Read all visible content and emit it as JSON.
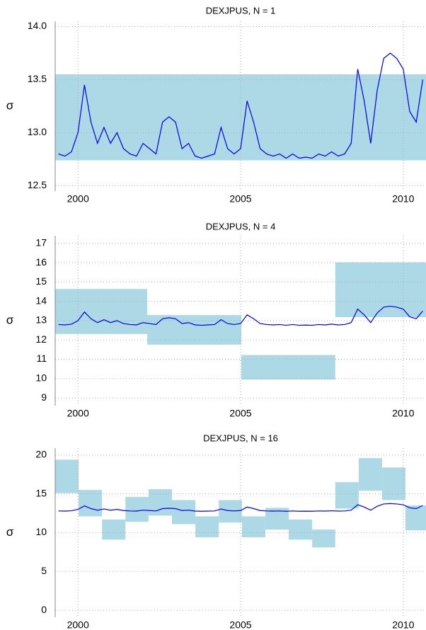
{
  "chart_data": [
    {
      "type": "line",
      "title": "DEXJPUS, N = 1",
      "y_label": "σ",
      "xlim": [
        1999.3,
        2010.7
      ],
      "xticks": [
        2000,
        2005,
        2010
      ],
      "ylim": [
        12.45,
        14.05
      ],
      "yticks": [
        {
          "value": 12.5,
          "label": "12.5"
        },
        {
          "value": 13,
          "label": "13.0"
        },
        {
          "value": 13.5,
          "label": "13.5"
        },
        {
          "value": 14,
          "label": "14.0"
        }
      ],
      "grid": true,
      "line_color": "#0000ee",
      "box_color": "#add8e6",
      "boxes": {
        "edges": [
          1999.3,
          2010.7
        ],
        "low": [
          12.74
        ],
        "high": [
          13.55
        ]
      },
      "x": [
        1999.4,
        1999.6,
        1999.8,
        2000.0,
        2000.2,
        2000.4,
        2000.6,
        2000.8,
        2001.0,
        2001.2,
        2001.4,
        2001.6,
        2001.8,
        2002.0,
        2002.2,
        2002.4,
        2002.6,
        2002.8,
        2003.0,
        2003.2,
        2003.4,
        2003.6,
        2003.8,
        2004.0,
        2004.2,
        2004.4,
        2004.6,
        2004.8,
        2005.0,
        2005.2,
        2005.4,
        2005.6,
        2005.8,
        2006.0,
        2006.2,
        2006.4,
        2006.6,
        2006.8,
        2007.0,
        2007.2,
        2007.4,
        2007.6,
        2007.8,
        2008.0,
        2008.2,
        2008.4,
        2008.6,
        2008.8,
        2009.0,
        2009.2,
        2009.4,
        2009.6,
        2009.8,
        2010.0,
        2010.2,
        2010.4,
        2010.6
      ],
      "values": [
        12.8,
        12.78,
        12.82,
        13.0,
        13.45,
        13.1,
        12.9,
        13.05,
        12.9,
        13.0,
        12.85,
        12.8,
        12.78,
        12.9,
        12.85,
        12.8,
        13.1,
        13.15,
        13.1,
        12.85,
        12.9,
        12.78,
        12.76,
        12.78,
        12.8,
        13.05,
        12.85,
        12.8,
        12.85,
        13.3,
        13.1,
        12.85,
        12.8,
        12.78,
        12.8,
        12.76,
        12.8,
        12.76,
        12.77,
        12.76,
        12.8,
        12.78,
        12.82,
        12.78,
        12.8,
        12.9,
        13.6,
        13.3,
        12.9,
        13.4,
        13.7,
        13.75,
        13.7,
        13.6,
        13.2,
        13.1,
        13.5
      ]
    },
    {
      "type": "line",
      "title": "DEXJPUS, N = 4",
      "y_label": "σ",
      "xlim": [
        1999.3,
        2010.7
      ],
      "xticks": [
        2000,
        2005,
        2010
      ],
      "ylim": [
        8.6,
        17.4
      ],
      "yticks": [
        9,
        10,
        11,
        12,
        13,
        14,
        15,
        16,
        17
      ],
      "grid": true,
      "line_color": "#0000ee",
      "box_color": "#add8e6",
      "boxes": {
        "edges": [
          1999.3,
          2002.13,
          2005.02,
          2007.91,
          2010.7
        ],
        "low": [
          12.31,
          11.76,
          9.95,
          13.18
        ],
        "high": [
          14.64,
          13.29,
          11.22,
          16.02
        ]
      },
      "x": [
        1999.4,
        1999.6,
        1999.8,
        2000.0,
        2000.2,
        2000.4,
        2000.6,
        2000.8,
        2001.0,
        2001.2,
        2001.4,
        2001.6,
        2001.8,
        2002.0,
        2002.2,
        2002.4,
        2002.6,
        2002.8,
        2003.0,
        2003.2,
        2003.4,
        2003.6,
        2003.8,
        2004.0,
        2004.2,
        2004.4,
        2004.6,
        2004.8,
        2005.0,
        2005.2,
        2005.4,
        2005.6,
        2005.8,
        2006.0,
        2006.2,
        2006.4,
        2006.6,
        2006.8,
        2007.0,
        2007.2,
        2007.4,
        2007.6,
        2007.8,
        2008.0,
        2008.2,
        2008.4,
        2008.6,
        2008.8,
        2009.0,
        2009.2,
        2009.4,
        2009.6,
        2009.8,
        2010.0,
        2010.2,
        2010.4,
        2010.6
      ],
      "values": [
        12.8,
        12.78,
        12.82,
        13.0,
        13.45,
        13.1,
        12.9,
        13.05,
        12.9,
        13.0,
        12.85,
        12.8,
        12.78,
        12.9,
        12.85,
        12.8,
        13.1,
        13.15,
        13.1,
        12.85,
        12.9,
        12.78,
        12.76,
        12.78,
        12.8,
        13.05,
        12.85,
        12.8,
        12.85,
        13.3,
        13.1,
        12.85,
        12.8,
        12.78,
        12.8,
        12.76,
        12.8,
        12.76,
        12.77,
        12.76,
        12.8,
        12.78,
        12.82,
        12.78,
        12.8,
        12.9,
        13.6,
        13.3,
        12.9,
        13.4,
        13.7,
        13.75,
        13.7,
        13.6,
        13.2,
        13.1,
        13.5
      ]
    },
    {
      "type": "line",
      "title": "DEXJPUS, N = 16",
      "y_label": "σ",
      "xlim": [
        1999.3,
        2010.7
      ],
      "xticks": [
        2000,
        2005,
        2010
      ],
      "ylim": [
        -0.9,
        20.9
      ],
      "yticks": [
        0,
        5,
        10,
        15,
        20
      ],
      "grid": true,
      "line_color": "#0000ee",
      "box_color": "#add8e6",
      "boxes": {
        "edges": [
          1999.3,
          2000.02,
          2000.74,
          2001.46,
          2002.17,
          2002.89,
          2003.61,
          2004.33,
          2005.04,
          2005.76,
          2006.48,
          2007.2,
          2007.91,
          2008.63,
          2009.35,
          2010.07,
          2010.7
        ],
        "low": [
          15.1,
          12.1,
          9.1,
          11.4,
          12.2,
          11.1,
          9.4,
          11.3,
          9.4,
          10.4,
          9.1,
          8.1,
          13.1,
          15.4,
          14.2,
          10.3
        ],
        "high": [
          19.4,
          15.5,
          11.7,
          14.6,
          15.6,
          14.2,
          12.1,
          14.2,
          12.1,
          13.2,
          11.7,
          10.4,
          16.5,
          19.6,
          18.4,
          13.5
        ]
      },
      "x": [
        1999.4,
        1999.6,
        1999.8,
        2000.0,
        2000.2,
        2000.4,
        2000.6,
        2000.8,
        2001.0,
        2001.2,
        2001.4,
        2001.6,
        2001.8,
        2002.0,
        2002.2,
        2002.4,
        2002.6,
        2002.8,
        2003.0,
        2003.2,
        2003.4,
        2003.6,
        2003.8,
        2004.0,
        2004.2,
        2004.4,
        2004.6,
        2004.8,
        2005.0,
        2005.2,
        2005.4,
        2005.6,
        2005.8,
        2006.0,
        2006.2,
        2006.4,
        2006.6,
        2006.8,
        2007.0,
        2007.2,
        2007.4,
        2007.6,
        2007.8,
        2008.0,
        2008.2,
        2008.4,
        2008.6,
        2008.8,
        2009.0,
        2009.2,
        2009.4,
        2009.6,
        2009.8,
        2010.0,
        2010.2,
        2010.4,
        2010.6
      ],
      "values": [
        12.8,
        12.78,
        12.82,
        13.0,
        13.45,
        13.1,
        12.9,
        13.05,
        12.9,
        13.0,
        12.85,
        12.8,
        12.78,
        12.9,
        12.85,
        12.8,
        13.1,
        13.15,
        13.1,
        12.85,
        12.9,
        12.78,
        12.76,
        12.78,
        12.8,
        13.05,
        12.85,
        12.8,
        12.85,
        13.3,
        13.1,
        12.85,
        12.8,
        12.78,
        12.8,
        12.76,
        12.8,
        12.76,
        12.77,
        12.76,
        12.8,
        12.78,
        12.82,
        12.78,
        12.8,
        12.9,
        13.6,
        13.3,
        12.9,
        13.4,
        13.7,
        13.75,
        13.7,
        13.6,
        13.2,
        13.1,
        13.5
      ]
    }
  ]
}
